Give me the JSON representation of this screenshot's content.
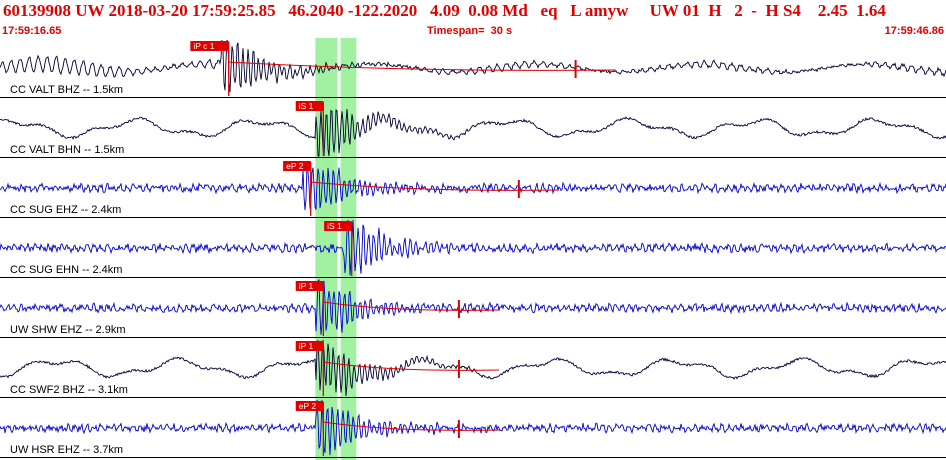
{
  "header": {
    "event_line": "60139908 UW 2018-03-20 17:59:25.85   46.2040 -122.2020   4.09  0.08 Md   eq   L amyw     UW 01  H   2  -  H S4    2.45  1.64"
  },
  "time_axis": {
    "start": "17:59:16.65",
    "timespan_label": "Timespan=  30 s",
    "end": "17:59:46.86"
  },
  "colors": {
    "header_text": "#e00000",
    "trace_black": "#000033",
    "trace_blue": "#0000cc",
    "pick": "#e00000",
    "window_band": "#90ee90"
  },
  "traces": [
    {
      "label": "CC VALT BHZ -- 1.5km",
      "color": "black",
      "pick": "iP c 1",
      "pick_time": 7.0,
      "coda": true,
      "coda_end": 18.0,
      "noise": "mixed"
    },
    {
      "label": "CC VALT BHN -- 1.5km",
      "color": "black",
      "pick": "iS 1",
      "pick_time": 10.0,
      "coda": false,
      "noise": "wave"
    },
    {
      "label": "CC SUG EHZ -- 2.4km",
      "color": "blue",
      "pick": "eP 2",
      "pick_time": 9.6,
      "coda": true,
      "coda_end": 16.2,
      "noise": "hf"
    },
    {
      "label": "CC SUG EHN -- 2.4km",
      "color": "blue",
      "pick": "iS 1",
      "pick_time": 10.9,
      "coda": false,
      "noise": "hf"
    },
    {
      "label": "UW SHW EHZ -- 2.9km",
      "color": "blue",
      "pick": "iP 1",
      "pick_time": 10.0,
      "coda": true,
      "coda_end": 14.3,
      "noise": "hf"
    },
    {
      "label": "CC SWF2 BHZ -- 3.1km",
      "color": "black",
      "pick": "iP 1",
      "pick_time": 10.0,
      "coda": true,
      "coda_end": 14.3,
      "noise": "wave"
    },
    {
      "label": "UW HSR EHZ -- 3.7km",
      "color": "blue",
      "pick": "eP 2",
      "pick_time": 10.0,
      "coda": true,
      "coda_end": 14.3,
      "noise": "hf"
    }
  ]
}
